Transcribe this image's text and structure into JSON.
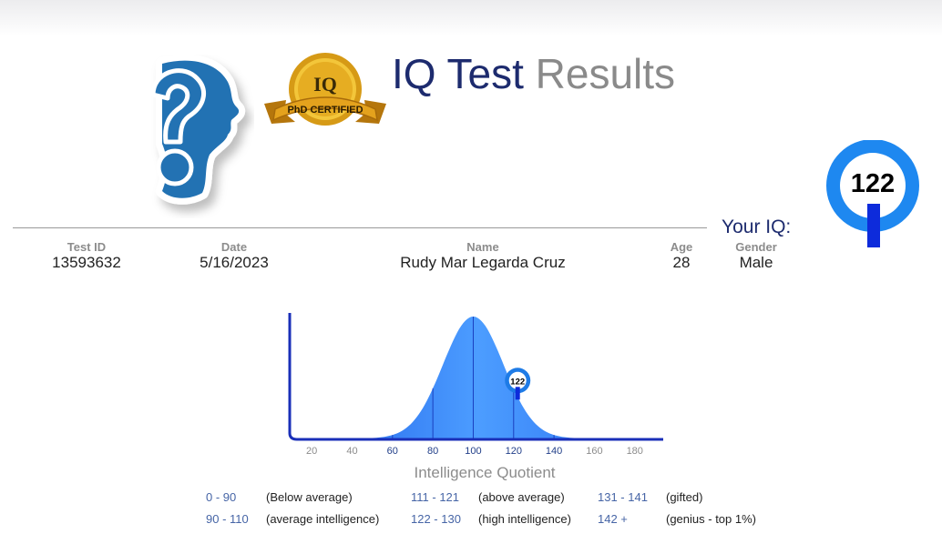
{
  "header": {
    "title_part1": "IQ Test",
    "title_part2": "Results",
    "badge_text": "PhD CERTIFIED",
    "badge_logo_text": "IQ"
  },
  "your_iq": {
    "label": "Your IQ:",
    "score": "122"
  },
  "info": [
    {
      "label": "Test ID",
      "value": "13593632"
    },
    {
      "label": "Date",
      "value": "5/16/2023"
    },
    {
      "label": "Name",
      "value": "Rudy Mar Legarda Cruz"
    },
    {
      "label": "Age",
      "value": "28"
    },
    {
      "label": "Gender",
      "value": "Male"
    }
  ],
  "chart_data": {
    "type": "area",
    "xlabel": "Intelligence Quotient",
    "ylabel": "",
    "x_ticks": [
      20,
      40,
      60,
      80,
      100,
      120,
      140,
      160,
      180
    ],
    "highlighted_ticks": [
      60,
      80,
      100,
      120,
      140
    ],
    "band_boundaries": [
      60,
      80,
      100,
      120,
      140
    ],
    "distribution": {
      "mean": 100,
      "sd": 15
    },
    "xlim": [
      10,
      195
    ],
    "marker": {
      "x": 122,
      "label": "122"
    },
    "colors": {
      "curve": "#3a86ff",
      "axis": "#1a2fb8",
      "marker": "#1e7be6"
    }
  },
  "legend": [
    {
      "range": "0 - 90",
      "desc": "(Below average)"
    },
    {
      "range": "90 - 110",
      "desc": "(average intelligence)"
    },
    {
      "range": "111 - 121",
      "desc": "(above average)"
    },
    {
      "range": "122 - 130",
      "desc": "(high intelligence)"
    },
    {
      "range": "131 - 141",
      "desc": "(gifted)"
    },
    {
      "range": "142 +",
      "desc": "(genius - top 1%)"
    }
  ],
  "colors": {
    "title_dark": "#1d2b6e",
    "title_light": "#8a8a8a",
    "badge_blue": "#1e88f0",
    "badge_dark": "#0d2bdb",
    "gold": "#e0a21a"
  }
}
